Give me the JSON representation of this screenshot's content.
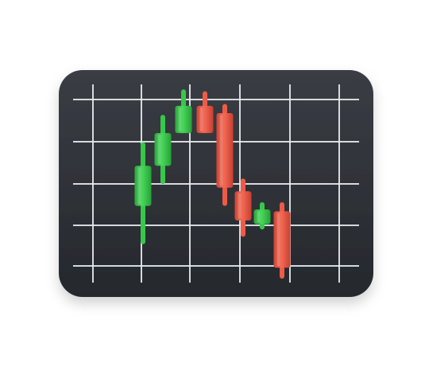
{
  "icon": {
    "name": "candlestick-chart-icon",
    "panel_color": "#2f3238",
    "grid_color": "#e9ecef",
    "up_color": "#37c84a",
    "down_color": "#ef5a47"
  },
  "candles": [
    {
      "direction": "up",
      "open": 35,
      "close": 57,
      "high": 70,
      "low": 14
    },
    {
      "direction": "up",
      "open": 57,
      "close": 75,
      "high": 85,
      "low": 47
    },
    {
      "direction": "up",
      "open": 75,
      "close": 90,
      "high": 99,
      "low": 75
    },
    {
      "direction": "down",
      "open": 90,
      "close": 75,
      "high": 98,
      "low": 75
    },
    {
      "direction": "down",
      "open": 86,
      "close": 45,
      "high": 91,
      "low": 35
    },
    {
      "direction": "down",
      "open": 43,
      "close": 27,
      "high": 50,
      "low": 18
    },
    {
      "direction": "up",
      "open": 25,
      "close": 33,
      "high": 37,
      "low": 22
    },
    {
      "direction": "down",
      "open": 32,
      "close": 1,
      "high": 37,
      "low": -5
    }
  ]
}
